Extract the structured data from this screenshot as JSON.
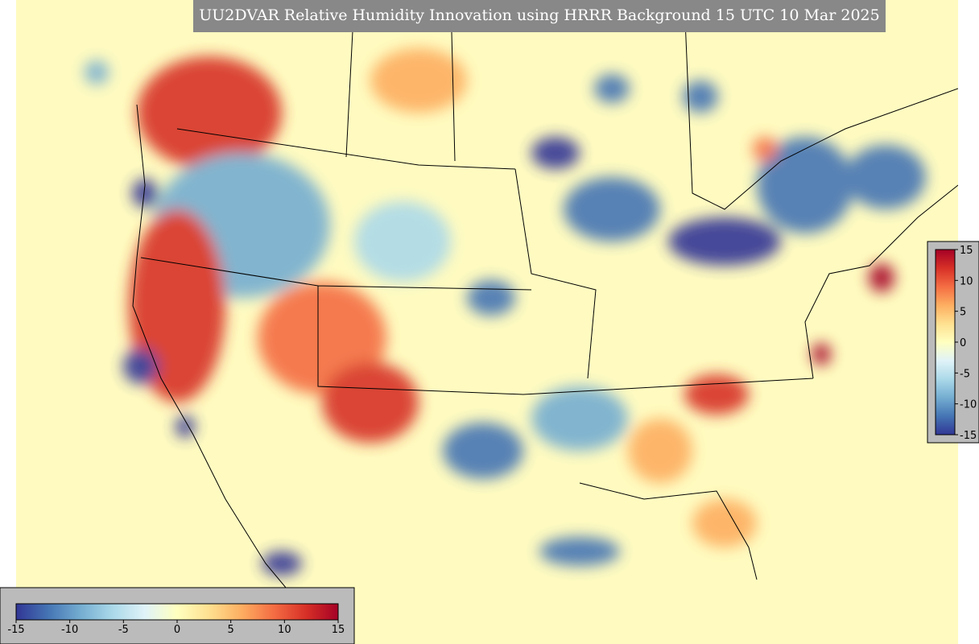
{
  "title": "UU2DVAR Relative Humidity Innovation using HRRR Background 15 UTC 10 Mar 2025",
  "colormap": [
    "#313695",
    "#4575b4",
    "#74add1",
    "#abd9e9",
    "#e0f3f8",
    "#ffffbf",
    "#fee090",
    "#fdae61",
    "#f46d43",
    "#d73027",
    "#a50026"
  ],
  "colorbars": [
    {
      "orientation": "horizontal",
      "lim": [
        -15,
        15
      ],
      "ticks": [
        -15,
        -10,
        -5,
        0,
        5,
        10,
        15
      ]
    },
    {
      "orientation": "vertical",
      "lim": [
        -15,
        15
      ],
      "ticks": [
        -15,
        -10,
        -5,
        0,
        5,
        10,
        15
      ]
    }
  ]
}
